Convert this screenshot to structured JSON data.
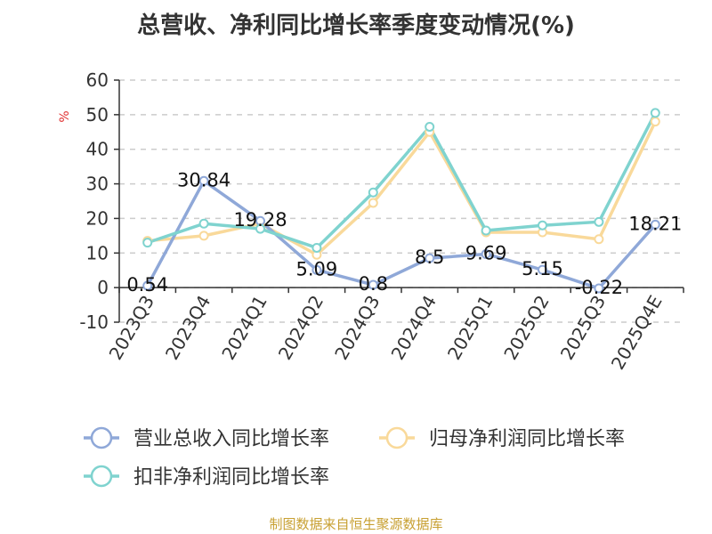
{
  "chart_data": {
    "type": "line",
    "title": "总营收、净利同比增长率季度变动情况(%)",
    "ylabel": "%",
    "xlabel": "",
    "categories": [
      "2023Q3",
      "2023Q4",
      "2024Q1",
      "2024Q2",
      "2024Q3",
      "2024Q4",
      "2025Q1",
      "2025Q2",
      "2025Q3",
      "2025Q4E"
    ],
    "ylim": [
      -10,
      60
    ],
    "yticks": [
      -10,
      0,
      10,
      20,
      30,
      40,
      50,
      60
    ],
    "grid": true,
    "legend_position": "bottom",
    "series": [
      {
        "name": "营业总收入同比增长率",
        "color": "#8fa8d8",
        "values": [
          0.54,
          30.84,
          19.28,
          5.09,
          0.8,
          8.5,
          9.69,
          5.15,
          -0.22,
          18.21
        ],
        "data_labels": [
          "0.54",
          "30.84",
          "19.28",
          "5.09",
          "0.8",
          "8.5",
          "9.69",
          "5.15",
          "-0.22",
          "18.21"
        ]
      },
      {
        "name": "归母净利润同比增长率",
        "color": "#f9d99a",
        "values": [
          13.5,
          15,
          18.5,
          9.5,
          24.5,
          45,
          16,
          16,
          14,
          48
        ]
      },
      {
        "name": "扣非净利润同比增长率",
        "color": "#7fd3cf",
        "values": [
          13,
          18.5,
          17,
          11.5,
          27.5,
          46.5,
          16.5,
          18,
          19,
          50.5
        ]
      }
    ]
  },
  "source_note": "制图数据来自恒生聚源数据库"
}
